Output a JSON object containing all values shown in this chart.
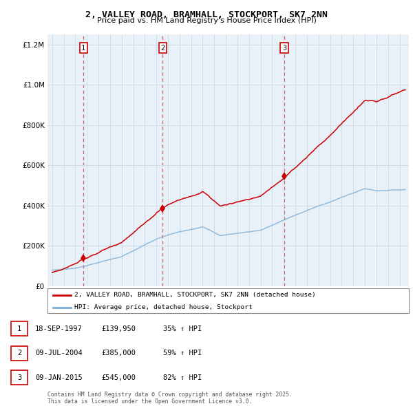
{
  "title": "2, VALLEY ROAD, BRAMHALL, STOCKPORT, SK7 2NN",
  "subtitle": "Price paid vs. HM Land Registry's House Price Index (HPI)",
  "legend_line1": "2, VALLEY ROAD, BRAMHALL, STOCKPORT, SK7 2NN (detached house)",
  "legend_line2": "HPI: Average price, detached house, Stockport",
  "sale1_date": "18-SEP-1997",
  "sale1_price": 139950,
  "sale1_hpi": "35% ↑ HPI",
  "sale2_date": "09-JUL-2004",
  "sale2_price": 385000,
  "sale2_hpi": "59% ↑ HPI",
  "sale3_date": "09-JAN-2015",
  "sale3_price": 545000,
  "sale3_hpi": "82% ↑ HPI",
  "footer": "Contains HM Land Registry data © Crown copyright and database right 2025.\nThis data is licensed under the Open Government Licence v3.0.",
  "red_color": "#cc0000",
  "blue_color": "#7aadd4",
  "grid_color": "#d0dce8",
  "bg_color": "#e8f0f8",
  "ylim": [
    0,
    1250000
  ],
  "yticks": [
    0,
    200000,
    400000,
    600000,
    800000,
    1000000,
    1200000
  ],
  "sale1_t": 1997.708,
  "sale2_t": 2004.542,
  "sale3_t": 2015.042
}
